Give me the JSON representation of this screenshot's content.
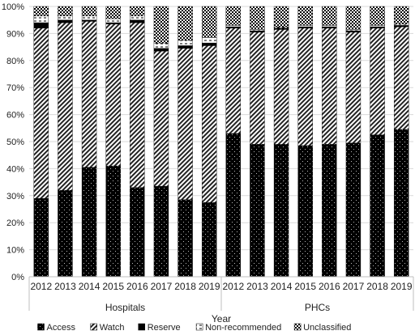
{
  "chart_data": {
    "type": "bar",
    "stacked": true,
    "normalized": true,
    "xlabel": "Year",
    "ylabel": "",
    "ylim": [
      0,
      100
    ],
    "yticks": [
      "0%",
      "10%",
      "20%",
      "30%",
      "40%",
      "50%",
      "60%",
      "70%",
      "80%",
      "90%",
      "100%"
    ],
    "groups": [
      {
        "name": "Hospitals",
        "categories": [
          "2012",
          "2013",
          "2014",
          "2015",
          "2016",
          "2017",
          "2018",
          "2019"
        ]
      },
      {
        "name": "PHCs",
        "categories": [
          "2012",
          "2013",
          "2014",
          "2015",
          "2016",
          "2017",
          "2018",
          "2019"
        ]
      }
    ],
    "legend_position": "bottom",
    "series": [
      {
        "name": "Access",
        "pattern": "dotted-black",
        "values": [
          29,
          32,
          40.5,
          41,
          33,
          33.5,
          28.5,
          27.5,
          53,
          49,
          49,
          48.5,
          49,
          49.5,
          52.5,
          54.5
        ]
      },
      {
        "name": "Watch",
        "pattern": "diagonal-hatch",
        "values": [
          63,
          62,
          54,
          52.5,
          61,
          50,
          56,
          58,
          39,
          41.5,
          42.5,
          43.5,
          43,
          41,
          39.5,
          38
        ]
      },
      {
        "name": "Reserve",
        "pattern": "solid-black",
        "values": [
          2,
          1,
          0.5,
          0.5,
          1,
          1,
          1,
          1,
          0.5,
          0.5,
          0.5,
          0.5,
          0.5,
          0.5,
          0.5,
          0.5
        ]
      },
      {
        "name": "Non-recommended",
        "pattern": "white-dashed",
        "values": [
          2.5,
          1.5,
          1.5,
          1.5,
          1.5,
          2,
          2,
          2,
          0.5,
          0.5,
          0.5,
          0.5,
          0.5,
          0.5,
          0.5,
          0.5
        ]
      },
      {
        "name": "Unclassified",
        "pattern": "checker",
        "values": [
          3.5,
          3.5,
          3.5,
          4.5,
          3.5,
          13.5,
          12.5,
          11.5,
          7,
          8.5,
          7.5,
          7,
          7,
          8.5,
          7,
          6.5
        ]
      }
    ]
  }
}
